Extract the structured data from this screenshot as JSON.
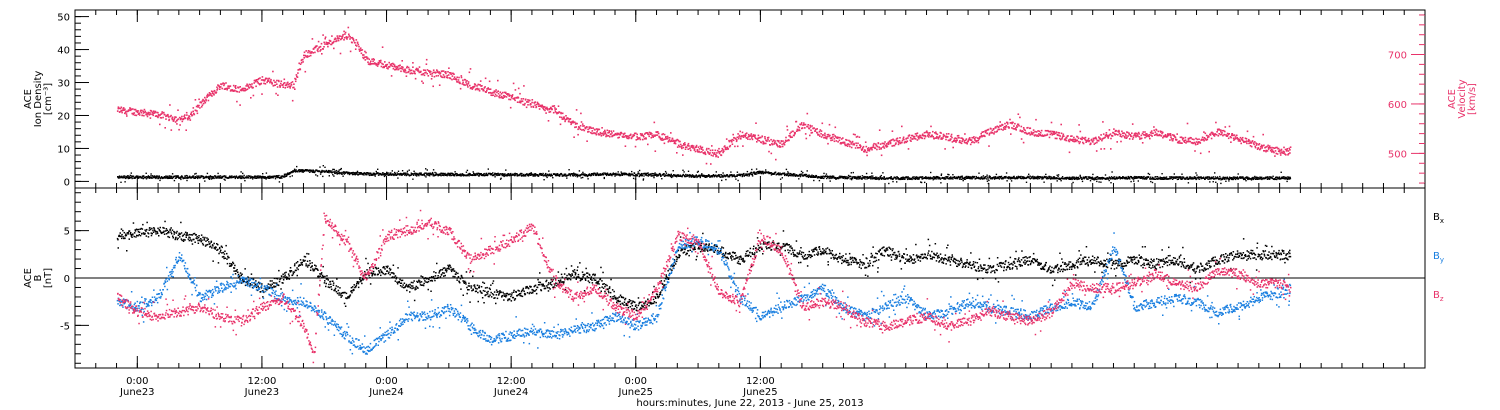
{
  "colors": {
    "pink": "#e8336a",
    "blue": "#1a7fe0",
    "black": "#000000"
  },
  "chart_data": [
    {
      "type": "scatter",
      "panel": "top",
      "left_axis": {
        "label_lines": [
          "ACE",
          "Ion Density",
          "[cm⁻³]"
        ],
        "ylim": [
          -2,
          52
        ],
        "ticks": [
          0,
          10,
          20,
          30,
          40,
          50
        ],
        "tick_labels": [
          "0",
          "10",
          "20",
          "30",
          "40",
          "50"
        ]
      },
      "right_axis": {
        "label_lines": [
          "ACE",
          "Velocity",
          "[km/s]"
        ],
        "ylim": [
          430,
          790
        ],
        "ticks": [
          500,
          600,
          700
        ],
        "tick_labels": [
          "500",
          "600",
          "700"
        ]
      },
      "series": [
        {
          "role": "density",
          "color": "#000000",
          "axis": "left",
          "x_hours": [
            -2,
            4,
            10,
            14,
            15,
            18,
            21,
            30,
            42,
            45,
            50,
            54,
            58,
            60,
            66,
            70,
            74,
            78,
            82,
            86,
            90,
            96,
            100,
            106,
            110,
            111
          ],
          "y": [
            1.5,
            1.5,
            1.5,
            1.6,
            3.5,
            3.2,
            2.5,
            2.3,
            2.2,
            2.4,
            2.2,
            1.8,
            2.0,
            3.0,
            1.5,
            1.3,
            1.2,
            1.3,
            1.3,
            1.4,
            1.2,
            1.3,
            1.2,
            1.2,
            1.2,
            1.2
          ]
        },
        {
          "role": "velocity",
          "color": "#e8336a",
          "axis": "right",
          "x_hours": [
            -2,
            0,
            2,
            4,
            5,
            6,
            8,
            10,
            12,
            14,
            15,
            16,
            18,
            20,
            21,
            22,
            24,
            26,
            28,
            30,
            32,
            34,
            36,
            38,
            40,
            42,
            44,
            46,
            48,
            50,
            52,
            54,
            56,
            58,
            60,
            62,
            64,
            66,
            68,
            70,
            72,
            74,
            76,
            78,
            80,
            82,
            84,
            86,
            88,
            90,
            92,
            94,
            96,
            98,
            100,
            102,
            104,
            106,
            108,
            110,
            111
          ],
          "y": [
            590,
            585,
            580,
            570,
            575,
            600,
            640,
            630,
            650,
            640,
            640,
            700,
            720,
            740,
            725,
            690,
            680,
            670,
            665,
            660,
            640,
            625,
            615,
            600,
            590,
            560,
            545,
            540,
            535,
            540,
            520,
            510,
            500,
            540,
            530,
            520,
            560,
            540,
            525,
            510,
            520,
            530,
            540,
            535,
            525,
            545,
            560,
            545,
            540,
            530,
            525,
            545,
            535,
            545,
            530,
            525,
            545,
            530,
            515,
            505,
            505
          ]
        }
      ]
    },
    {
      "type": "scatter",
      "panel": "bottom",
      "left_axis": {
        "label_lines": [
          "ACE",
          "B",
          "[nT]"
        ],
        "ylim": [
          -9.5,
          9.5
        ],
        "ticks": [
          -5,
          0,
          5
        ],
        "tick_labels": [
          "-5",
          "0",
          "5"
        ]
      },
      "zero_line": true,
      "series": [
        {
          "name": "Bx",
          "color": "#000000",
          "x_hours": [
            -2,
            0,
            2,
            4,
            6,
            8,
            10,
            12,
            14,
            16,
            18,
            20,
            22,
            24,
            26,
            28,
            30,
            32,
            34,
            36,
            38,
            40,
            42,
            44,
            46,
            48,
            50,
            52,
            54,
            56,
            58,
            60,
            62,
            64,
            66,
            68,
            70,
            72,
            74,
            76,
            78,
            80,
            82,
            84,
            86,
            88,
            90,
            92,
            94,
            96,
            98,
            100,
            102,
            104,
            106,
            108,
            110,
            111
          ],
          "y": [
            4.5,
            4.8,
            5.0,
            4.5,
            4.2,
            3.0,
            0.0,
            -1.0,
            0.0,
            2.0,
            0.0,
            -2.0,
            0.5,
            1.0,
            -1.0,
            0.0,
            1.0,
            -1.0,
            -1.5,
            -2.0,
            -1.0,
            -0.5,
            0.5,
            0.0,
            -2.0,
            -3.0,
            -2.0,
            2.5,
            3.5,
            3.0,
            2.0,
            3.5,
            3.5,
            2.5,
            3.0,
            2.0,
            1.5,
            3.0,
            2.0,
            2.5,
            2.0,
            1.5,
            1.0,
            1.5,
            2.0,
            1.0,
            1.5,
            2.0,
            1.5,
            2.0,
            1.5,
            2.0,
            1.0,
            2.0,
            2.5,
            2.5,
            2.5,
            2.5
          ]
        },
        {
          "name": "By",
          "color": "#1a7fe0",
          "x_hours": [
            -2,
            0,
            2,
            4,
            6,
            8,
            10,
            12,
            14,
            16,
            18,
            20,
            22,
            24,
            26,
            28,
            30,
            32,
            34,
            36,
            38,
            40,
            42,
            44,
            46,
            48,
            50,
            52,
            54,
            56,
            58,
            60,
            62,
            64,
            66,
            68,
            70,
            72,
            74,
            76,
            78,
            80,
            82,
            84,
            86,
            88,
            90,
            92,
            94,
            96,
            98,
            100,
            102,
            104,
            106,
            108,
            110,
            111
          ],
          "y": [
            -2.5,
            -3.0,
            -2.0,
            2.5,
            -2.0,
            -1.0,
            0.0,
            -1.0,
            -2.0,
            -2.5,
            -4.0,
            -6.0,
            -7.5,
            -6.0,
            -4.0,
            -4.0,
            -3.0,
            -5.0,
            -6.5,
            -6.0,
            -5.5,
            -6.0,
            -5.5,
            -5.0,
            -4.0,
            -5.0,
            -4.0,
            3.5,
            4.0,
            3.0,
            -2.0,
            -4.0,
            -3.0,
            -2.0,
            -1.0,
            -3.0,
            -4.0,
            -3.0,
            -2.0,
            -4.0,
            -3.5,
            -2.5,
            -3.0,
            -3.5,
            -4.0,
            -3.0,
            -2.5,
            -3.0,
            3.5,
            -3.0,
            -2.5,
            -2.0,
            -2.5,
            -3.5,
            -3.0,
            -2.0,
            -1.5,
            -1.0
          ]
        },
        {
          "name": "Bz",
          "color": "#e8336a",
          "x_hours": [
            -2,
            0,
            2,
            4,
            6,
            8,
            10,
            12,
            14,
            16,
            17,
            18,
            20,
            22,
            24,
            26,
            28,
            30,
            32,
            34,
            36,
            38,
            40,
            42,
            44,
            46,
            48,
            50,
            52,
            54,
            56,
            58,
            60,
            62,
            64,
            66,
            68,
            70,
            72,
            74,
            76,
            78,
            80,
            82,
            84,
            86,
            88,
            90,
            92,
            94,
            96,
            98,
            100,
            102,
            104,
            106,
            108,
            110,
            111
          ],
          "y": [
            -2.0,
            -3.5,
            -4.0,
            -3.5,
            -3.0,
            -4.0,
            -4.5,
            -3.0,
            -2.0,
            -5.0,
            -8.0,
            6.5,
            4.0,
            0.0,
            4.5,
            5.0,
            6.0,
            5.0,
            2.0,
            3.0,
            4.0,
            5.5,
            0.0,
            -2.0,
            -1.0,
            -3.0,
            -4.0,
            -1.0,
            4.5,
            4.0,
            -1.5,
            -2.5,
            4.5,
            3.0,
            -3.0,
            -2.5,
            -3.0,
            -4.5,
            -5.0,
            -4.5,
            -4.0,
            -5.0,
            -4.5,
            -3.5,
            -4.0,
            -4.5,
            -3.5,
            -0.5,
            -1.0,
            -1.0,
            -0.5,
            0.5,
            -0.5,
            -1.0,
            1.0,
            0.5,
            -0.5,
            -0.5,
            -1.0
          ]
        }
      ],
      "legend": [
        {
          "label": "B",
          "sub": "x",
          "color": "#000000"
        },
        {
          "label": "B",
          "sub": "y",
          "color": "#1a7fe0"
        },
        {
          "label": "B",
          "sub": "z",
          "color": "#e8336a"
        }
      ]
    }
  ],
  "x_axis": {
    "range_hours": [
      -6,
      124
    ],
    "major_ticks_hours": [
      0,
      12,
      24,
      36,
      48,
      60
    ],
    "tick_labels_time": [
      "0:00",
      "12:00",
      "0:00",
      "12:00",
      "0:00",
      "12:00"
    ],
    "tick_labels_date": [
      "June23",
      "June23",
      "June24",
      "June24",
      "June25",
      "June25"
    ],
    "title": "hours:minutes, June 22, 2013 - June 25, 2013"
  }
}
